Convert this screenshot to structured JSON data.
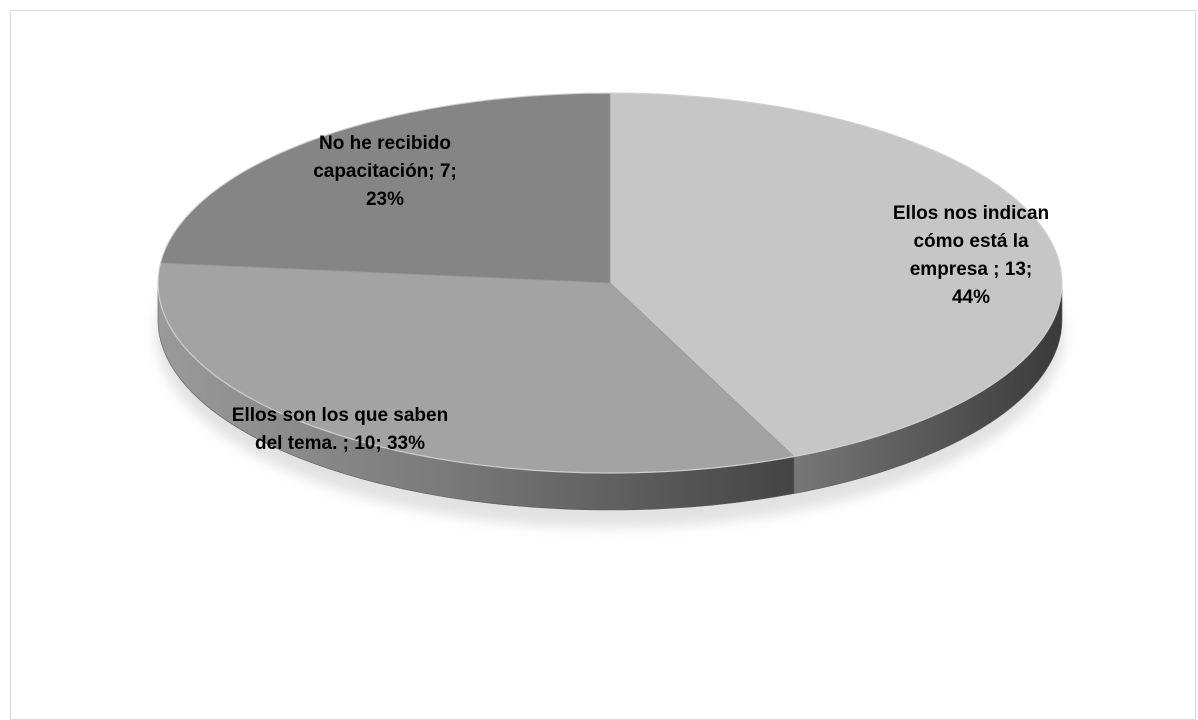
{
  "chart_data": {
    "type": "pie",
    "style": "3d",
    "title": "",
    "legend": "none",
    "categories": [
      "Ellos nos indican cómo está la empresa",
      "Ellos son los que saben del tema.",
      "No he recibido capacitación"
    ],
    "values": [
      13,
      10,
      7
    ],
    "percentages": [
      "44%",
      "33%",
      "23%"
    ],
    "colors": [
      "#c6c6c6",
      "#a3a3a3",
      "#858585"
    ],
    "data_labels": [
      "Ellos nos indican\ncómo está la\nempresa     ; 13;\n44%",
      "Ellos son los que saben\ndel tema.     ; 10; 33%",
      "No he recibido\ncapacitación; 7;\n23%"
    ]
  }
}
